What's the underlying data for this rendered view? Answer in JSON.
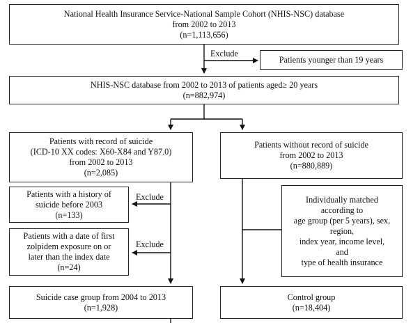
{
  "boxes": {
    "nhis_nsc": [
      "National Health Insurance Service-National Sample Cohort (NHIS-NSC) database",
      "from 2002 to 2013",
      "(n=1,113,656)"
    ],
    "younger_19": [
      "Patients younger than 19 years"
    ],
    "aged_20": [
      "NHIS-NSC database from 2002 to 2013 of patients aged≥ 20 years",
      "(n=882,974)"
    ],
    "suicide_record": [
      "Patients with record of suicide",
      "(ICD-10 XX codes: X60-X84 and Y87.0)",
      "from 2002 to 2013",
      "(n=2,085)"
    ],
    "no_suicide_record": [
      "Patients without record of suicide",
      "from 2002 to 2013",
      "(n=880,889)"
    ],
    "suicide_before_2003": [
      "Patients with a history of",
      "suicide before 2003",
      "(n=133)"
    ],
    "zolpidem_later": [
      "Patients with a date of first",
      "zolpidem exposure on or",
      "later than the index date",
      "(n=24)"
    ],
    "matched": [
      "Individually matched",
      "according to",
      "age group (per 5 years), sex,",
      "region,",
      "index year, income level,",
      "and",
      "type of health insurance"
    ],
    "case_group": [
      "Suicide case group from 2004 to 2013",
      "(n=1,928)"
    ],
    "control_group": [
      "Control group",
      "(n=18,404)"
    ]
  },
  "labels": {
    "exclude_1": "Exclude",
    "exclude_2": "Exclude",
    "exclude_3": "Exclude"
  }
}
